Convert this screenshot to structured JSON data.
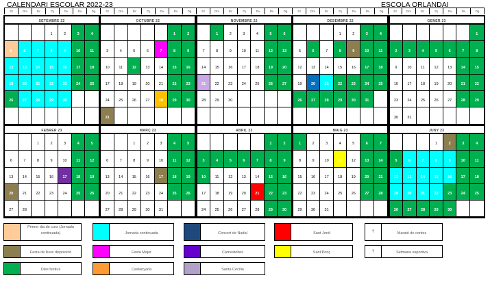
{
  "header": {
    "title": "CALENDARI ESCOLAR 2022-23",
    "school": "ESCOLA ORLANDAI"
  },
  "weekdays": [
    "Dl",
    "Dm",
    "Dc",
    "Dj",
    "Dv",
    "Ds",
    "Dg"
  ],
  "colors": {
    "green": "#00b050",
    "cyan": "#00ffff",
    "peach": "#ffcc99",
    "olive": "#8c7e4e",
    "magenta": "#ff00ff",
    "amber": "#ffc000",
    "lavender": "#c9a8e8",
    "blue": "#0070c0",
    "purple": "#7030a0",
    "red": "#ff0000",
    "yellow": "#ffff00",
    "navy": "#1f497d",
    "violet": "#6600cc",
    "orange": "#ff9933",
    "lilac": "#b1a0c7"
  },
  "months": [
    {
      "name": "SETEMBRE 22",
      "offset": 3,
      "days": 30,
      "marks": {
        "green": [
          3,
          4,
          10,
          11,
          17,
          18,
          24,
          25,
          26
        ],
        "peach": [
          5
        ],
        "cyan": [
          6,
          7,
          8,
          9,
          12,
          13,
          14,
          15,
          16,
          19,
          20,
          21,
          22,
          23,
          27,
          28,
          29,
          30
        ]
      }
    },
    {
      "name": "OCTUBRE 22",
      "offset": 5,
      "days": 31,
      "marks": {
        "green": [
          1,
          2,
          8,
          9,
          12,
          15,
          16,
          22,
          23,
          29,
          30
        ],
        "magenta": [
          7
        ],
        "amber": [
          28
        ],
        "olive": [
          31
        ]
      }
    },
    {
      "name": "NOVEMBRE 22",
      "offset": 1,
      "days": 30,
      "marks": {
        "green": [
          1,
          5,
          6,
          12,
          13,
          19,
          20,
          26,
          27
        ],
        "lavender": [
          21
        ]
      }
    },
    {
      "name": "DESEMBRE 22",
      "offset": 3,
      "days": 31,
      "marks": {
        "green": [
          3,
          4,
          6,
          8,
          10,
          11,
          17,
          18,
          22,
          23,
          24,
          25,
          26,
          27,
          28,
          29,
          30,
          31
        ],
        "olive": [
          9
        ],
        "blue": [
          20
        ],
        "cyan": [
          21
        ]
      }
    },
    {
      "name": "GENER 23",
      "offset": 6,
      "days": 31,
      "marks": {
        "green": [
          1,
          2,
          3,
          4,
          5,
          6,
          7,
          8,
          14,
          15,
          21,
          22,
          28,
          29
        ]
      }
    },
    {
      "name": "FEBRER 23",
      "offset": 2,
      "days": 28,
      "marks": {
        "green": [
          4,
          5,
          11,
          12,
          18,
          19,
          25,
          26
        ],
        "purple": [
          17
        ],
        "olive": [
          20
        ]
      }
    },
    {
      "name": "MARÇ 23",
      "offset": 2,
      "days": 31,
      "marks": {
        "green": [
          4,
          5,
          11,
          12,
          18,
          19,
          25,
          26
        ],
        "olive": [
          17
        ]
      }
    },
    {
      "name": "ABRIL 23",
      "offset": 5,
      "days": 30,
      "marks": {
        "green": [
          1,
          2,
          3,
          4,
          5,
          6,
          7,
          8,
          9,
          10,
          15,
          16,
          22,
          23,
          29,
          30
        ],
        "red": [
          21
        ]
      }
    },
    {
      "name": "MAIG 23",
      "offset": 0,
      "days": 31,
      "marks": {
        "green": [
          1,
          6,
          7,
          13,
          14,
          20,
          21,
          27,
          28
        ],
        "yellow": [
          11
        ]
      }
    },
    {
      "name": "JUNY 23",
      "offset": 3,
      "days": 30,
      "marks": {
        "green": [
          3,
          4,
          5,
          10,
          11,
          17,
          18,
          23,
          24,
          25,
          26,
          27,
          28,
          29,
          30
        ],
        "olive": [
          2
        ],
        "cyan": [
          6,
          7,
          8,
          9,
          12,
          13,
          14,
          15,
          16,
          19,
          20,
          21,
          22
        ]
      }
    }
  ],
  "legend": [
    {
      "label": "Primer dia de curs (Jornada continuada)",
      "color": "peach",
      "mark": ""
    },
    {
      "label": "Jornada continuada",
      "color": "cyan",
      "mark": ""
    },
    {
      "label": "Concert de Nadal",
      "color": "navy",
      "mark": ""
    },
    {
      "label": "Sant Jordi",
      "color": "red",
      "mark": ""
    },
    {
      "label": "Marató de contes",
      "color": "",
      "mark": "?"
    },
    {
      "label": "Festa de lliure disposició",
      "color": "olive",
      "mark": ""
    },
    {
      "label": "Festa Major",
      "color": "magenta",
      "mark": ""
    },
    {
      "label": "Carnestoltes",
      "color": "violet",
      "mark": ""
    },
    {
      "label": "Sant Ponç",
      "color": "yellow",
      "mark": ""
    },
    {
      "label": "Setmana esportiva",
      "color": "",
      "mark": "?"
    },
    {
      "label": "Dies festius",
      "color": "green",
      "mark": ""
    },
    {
      "label": "Castanyada",
      "color": "orange",
      "mark": ""
    },
    {
      "label": "Santa Cecília",
      "color": "lilac",
      "mark": ""
    }
  ]
}
